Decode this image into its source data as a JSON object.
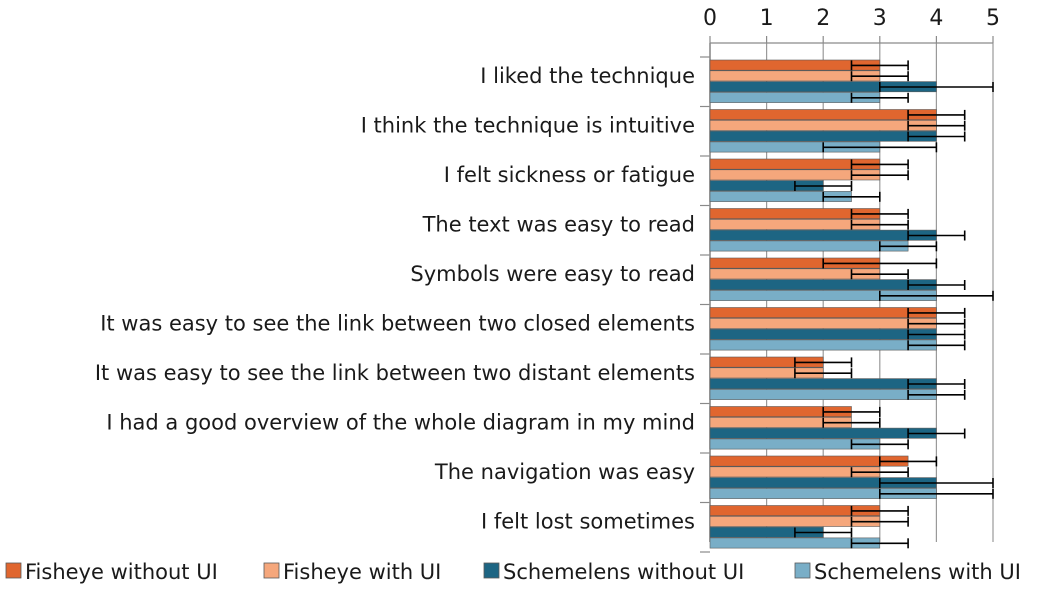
{
  "chart_data": {
    "type": "bar",
    "orientation": "horizontal",
    "title": "",
    "xlabel": "",
    "ylabel": "",
    "xlim": [
      0,
      5
    ],
    "xticks": [
      "0",
      "1",
      "2",
      "3",
      "4",
      "5"
    ],
    "grid": true,
    "legend_position": "bottom",
    "categories": [
      "I liked the technique",
      "I think the technique is intuitive",
      "I felt sickness or fatigue",
      "The text was easy to read",
      "Symbols were easy to read",
      "It was easy to see the link between two closed elements",
      "It was easy to see the link between two distant elements",
      "I had a good overview of the whole diagram in my mind",
      "The navigation was easy",
      "I felt lost sometimes"
    ],
    "series": [
      {
        "name": "Fisheye without UI",
        "color": "#e0662f",
        "values": [
          3,
          4,
          3,
          3,
          3,
          4,
          2,
          2.5,
          3.5,
          3
        ],
        "error": [
          0.5,
          0.5,
          0.5,
          0.5,
          1,
          0.5,
          0.5,
          0.5,
          0.5,
          0.5
        ]
      },
      {
        "name": "Fisheye with UI",
        "color": "#f5a77c",
        "values": [
          3,
          4,
          3,
          3,
          3,
          4,
          2,
          2.5,
          3,
          3
        ],
        "error": [
          0.5,
          0.5,
          0.5,
          0.5,
          0.5,
          0.5,
          0.5,
          0.5,
          0.5,
          0.5
        ]
      },
      {
        "name": "Schemelens without UI",
        "color": "#1d6583",
        "values": [
          4,
          4,
          2,
          4,
          4,
          4,
          4,
          4,
          4,
          2
        ],
        "error": [
          1,
          0.5,
          0.5,
          0.5,
          0.5,
          0.5,
          0.5,
          0.5,
          1,
          0.5
        ]
      },
      {
        "name": "Schemelens with UI",
        "color": "#79aec7",
        "values": [
          3,
          3,
          2.5,
          3.5,
          4,
          4,
          4,
          3,
          4,
          3
        ],
        "error": [
          0.5,
          1,
          0.5,
          0.5,
          1,
          0.5,
          0.5,
          0.5,
          1,
          0.5
        ]
      }
    ]
  }
}
